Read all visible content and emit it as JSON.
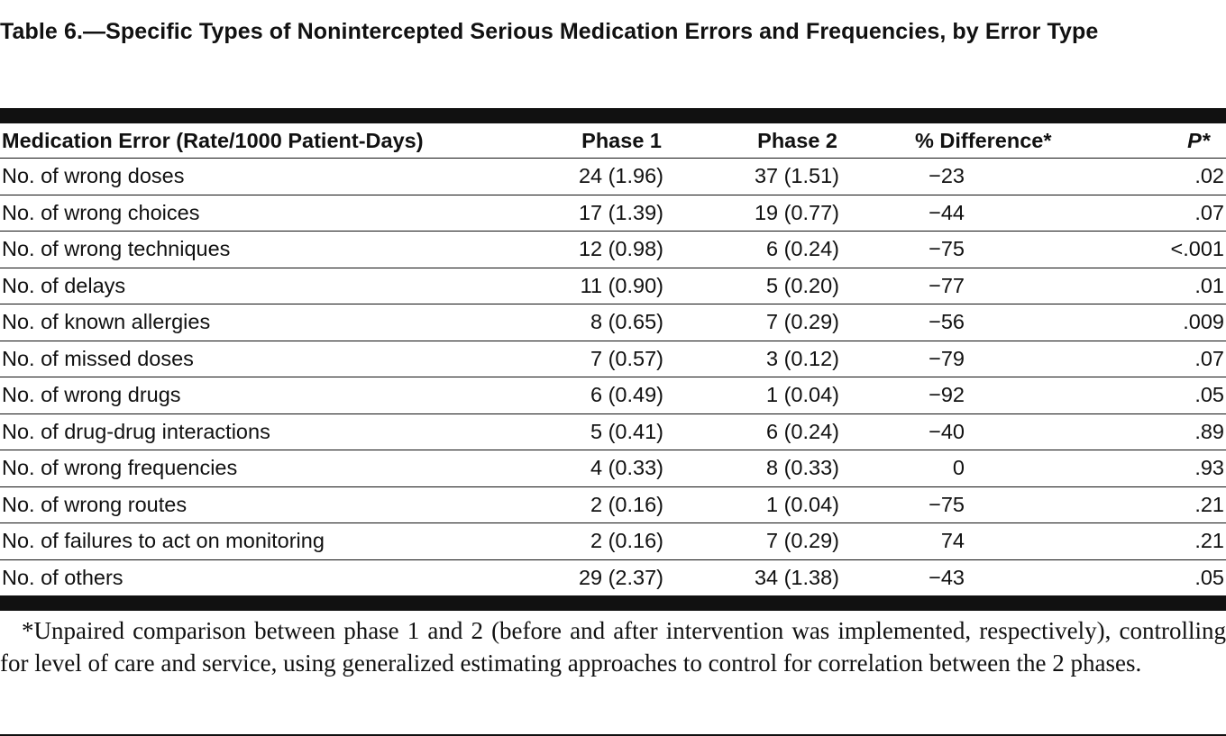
{
  "table": {
    "caption": "Table 6.—Specific Types of Nonintercepted Serious Medication Errors and Frequencies, by Error Type",
    "columns": {
      "label": "Medication Error (Rate/1000 Patient-Days)",
      "phase1": "Phase 1",
      "phase2": "Phase 2",
      "pct_diff": "% Difference*",
      "p_value": "P*"
    },
    "rows": [
      {
        "label": "No. of wrong doses",
        "phase1": "24 (1.96)",
        "phase2": "37 (1.51)",
        "pct_diff": "−23",
        "p_value": ".02"
      },
      {
        "label": "No. of wrong choices",
        "phase1": "17 (1.39)",
        "phase2": "19 (0.77)",
        "pct_diff": "−44",
        "p_value": ".07"
      },
      {
        "label": "No. of wrong techniques",
        "phase1": "12 (0.98)",
        "phase2": "6 (0.24)",
        "pct_diff": "−75",
        "p_value": "<.001"
      },
      {
        "label": "No. of delays",
        "phase1": "11 (0.90)",
        "phase2": "5 (0.20)",
        "pct_diff": "−77",
        "p_value": ".01"
      },
      {
        "label": "No. of known allergies",
        "phase1": "8 (0.65)",
        "phase2": "7 (0.29)",
        "pct_diff": "−56",
        "p_value": ".009"
      },
      {
        "label": "No. of missed doses",
        "phase1": "7 (0.57)",
        "phase2": "3 (0.12)",
        "pct_diff": "−79",
        "p_value": ".07"
      },
      {
        "label": "No. of wrong drugs",
        "phase1": "6 (0.49)",
        "phase2": "1 (0.04)",
        "pct_diff": "−92",
        "p_value": ".05"
      },
      {
        "label": "No. of drug-drug interactions",
        "phase1": "5 (0.41)",
        "phase2": "6 (0.24)",
        "pct_diff": "−40",
        "p_value": ".89"
      },
      {
        "label": "No. of wrong frequencies",
        "phase1": "4 (0.33)",
        "phase2": "8 (0.33)",
        "pct_diff": "0",
        "p_value": ".93"
      },
      {
        "label": "No. of wrong routes",
        "phase1": "2 (0.16)",
        "phase2": "1 (0.04)",
        "pct_diff": "−75",
        "p_value": ".21"
      },
      {
        "label": "No. of failures to act on monitoring",
        "phase1": "2 (0.16)",
        "phase2": "7 (0.29)",
        "pct_diff": "74",
        "p_value": ".21"
      },
      {
        "label": "No. of others",
        "phase1": "29 (2.37)",
        "phase2": "34 (1.38)",
        "pct_diff": "−43",
        "p_value": ".05"
      }
    ],
    "footnote": "*Unpaired comparison between phase 1 and 2 (before and after intervention was implemented, respectively), controlling for level of care and service, using generalized estimating approaches to control for correlation between the 2 phases."
  }
}
